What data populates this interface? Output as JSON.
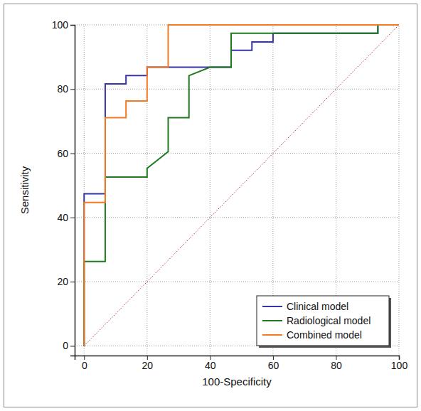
{
  "chart_data": {
    "type": "line",
    "x_label": "100-Specificity",
    "y_label": "Sensitivity",
    "xlim": [
      -3,
      100
    ],
    "ylim": [
      -3,
      100
    ],
    "xticks": [
      0,
      20,
      40,
      60,
      80,
      100
    ],
    "yticks": [
      0,
      20,
      40,
      60,
      80,
      100
    ],
    "grid": true,
    "legend": "lower right",
    "series": [
      {
        "name": "Clinical model",
        "color": "#3535a8",
        "x": [
          0,
          0,
          6.7,
          6.7,
          13.3,
          13.3,
          20,
          20,
          46.7,
          46.7,
          53.3,
          53.3,
          60,
          60,
          93.3,
          93.3,
          100
        ],
        "values": [
          0,
          47.4,
          47.4,
          81.6,
          81.6,
          84.2,
          84.2,
          86.8,
          86.8,
          92.1,
          92.1,
          94.7,
          94.7,
          97.4,
          97.4,
          100,
          100
        ]
      },
      {
        "name": "Radiological model",
        "color": "#1f7a1f",
        "x": [
          0,
          0,
          6.7,
          6.7,
          20,
          20,
          26.7,
          26.7,
          33.3,
          33.3,
          40,
          46.7,
          46.7,
          93.3,
          93.3,
          100
        ],
        "values": [
          0,
          26.3,
          26.3,
          52.6,
          52.6,
          55.3,
          60.5,
          71.1,
          71.1,
          84.2,
          86.8,
          86.8,
          97.4,
          97.4,
          100,
          100
        ]
      },
      {
        "name": "Combined model",
        "color": "#f47a20",
        "x": [
          0,
          0,
          6.7,
          6.7,
          13.3,
          13.3,
          20,
          20,
          26.7,
          26.7,
          100
        ],
        "values": [
          0,
          44.7,
          44.7,
          71.1,
          71.1,
          76.3,
          76.3,
          86.8,
          86.8,
          100,
          100
        ]
      }
    ],
    "diagonal": {
      "x": [
        0,
        100
      ],
      "values": [
        0,
        100
      ],
      "color": "#b03a3a",
      "line_style": "dotted"
    }
  }
}
